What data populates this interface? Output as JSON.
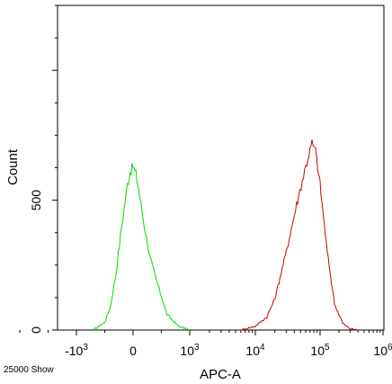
{
  "chart_data": {
    "type": "line",
    "title": "",
    "xlabel": "APC-A",
    "ylabel": "Count",
    "x_scale": "biexponential",
    "xlim": [
      -3000,
      1000000
    ],
    "ylim": [
      0,
      1250
    ],
    "x_ticks": [
      {
        "value": -1000,
        "base": "-10",
        "exp": "3"
      },
      {
        "value": 0,
        "base": "0",
        "exp": ""
      },
      {
        "value": 1000,
        "base": "10",
        "exp": "3"
      },
      {
        "value": 10000,
        "base": "10",
        "exp": "4"
      },
      {
        "value": 100000,
        "base": "10",
        "exp": "5"
      },
      {
        "value": 1000000,
        "base": "10",
        "exp": "6"
      }
    ],
    "y_ticks": [
      {
        "value": 0,
        "label": "0"
      },
      {
        "value": 500,
        "label": "500"
      }
    ],
    "grid": false,
    "legend": "none",
    "footer_note": "25000 Show",
    "series": [
      {
        "color": "#00dd00",
        "x": [
          -700,
          -500,
          -400,
          -300,
          -200,
          -100,
          -50,
          0,
          50,
          100,
          200,
          300,
          400,
          500,
          600,
          800,
          1000
        ],
        "y": [
          0,
          30,
          90,
          220,
          400,
          560,
          610,
          630,
          600,
          540,
          400,
          280,
          200,
          130,
          60,
          15,
          0
        ]
      },
      {
        "color": "#cc0000",
        "x": [
          6000,
          10000,
          15000,
          20000,
          30000,
          45000,
          60000,
          75000,
          85000,
          100000,
          130000,
          170000,
          230000,
          300000,
          400000
        ],
        "y": [
          0,
          15,
          50,
          120,
          300,
          500,
          630,
          720,
          690,
          560,
          300,
          100,
          25,
          5,
          0
        ]
      }
    ]
  }
}
